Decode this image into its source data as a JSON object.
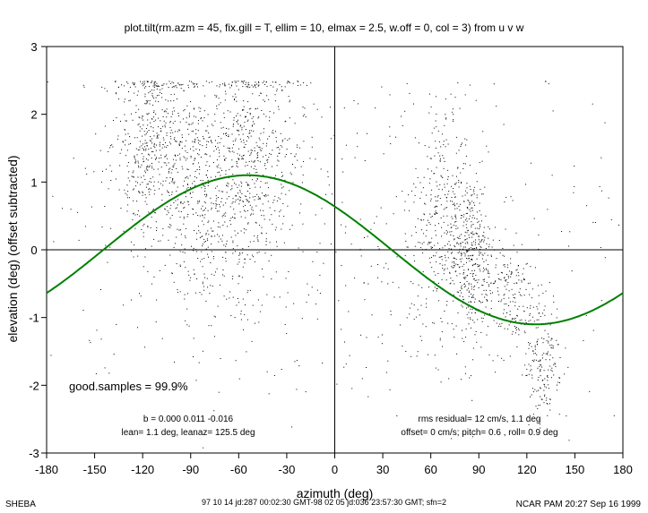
{
  "chart_data": {
    "type": "scatter",
    "title": "plot.tilt(rm.azm = 45, fix.gill = T, ellim = 10, elmax = 2.5, w.off = 0, col =  3) from u v w",
    "xlabel": "azimuth (deg)",
    "ylabel": "elevation (deg)  (offset subtracted)",
    "xlim": [
      -180,
      180
    ],
    "ylim": [
      -3,
      3
    ],
    "xticks": [
      "-180",
      "-150",
      "-120",
      "-90",
      "-60",
      "-30",
      "0",
      "30",
      "60",
      "90",
      "120",
      "150",
      "180"
    ],
    "yticks": [
      "-3",
      "-2",
      "-1",
      "0",
      "1",
      "2",
      "3"
    ],
    "reference_lines": {
      "x": 0,
      "y": 0
    },
    "scatter_clusters": [
      {
        "x_center": -115,
        "x_spread": 12,
        "y_center": 1.6,
        "y_spread": 0.7,
        "count": 520
      },
      {
        "x_center": -85,
        "x_spread": 10,
        "y_center": 0.9,
        "y_spread": 0.9,
        "count": 380
      },
      {
        "x_center": -58,
        "x_spread": 9,
        "y_center": 1.2,
        "y_spread": 0.9,
        "count": 420
      },
      {
        "x_center": -35,
        "x_spread": 10,
        "y_center": 1.5,
        "y_spread": 0.8,
        "count": 160
      },
      {
        "x_center": 68,
        "x_spread": 10,
        "y_center": 0.4,
        "y_spread": 0.9,
        "count": 360
      },
      {
        "x_center": 85,
        "x_spread": 6,
        "y_center": -0.1,
        "y_spread": 0.6,
        "count": 320
      },
      {
        "x_center": 108,
        "x_spread": 8,
        "y_center": -0.7,
        "y_spread": 0.4,
        "count": 160
      },
      {
        "x_center": 130,
        "x_spread": 6,
        "y_center": -1.6,
        "y_spread": 0.5,
        "count": 180
      },
      {
        "x_center": 0,
        "x_spread": 100,
        "y_center": 0.2,
        "y_spread": 1.3,
        "count": 500
      }
    ],
    "fit_curve": {
      "type": "sine",
      "formula": "elevation = amplitude * cos(azimuth - lean_azimuth)",
      "amplitude": 1.1,
      "lean_azimuth": -54.5,
      "color": "#008000"
    },
    "dot_color": "#000000"
  },
  "annotations": {
    "good_samples": "good.samples = 99.9%",
    "b_values": "b =  0.000  0.011 -0.016",
    "lean": "lean= 1.1 deg, leanaz= 125.5 deg",
    "rms": "rms residual= 12 cm/s, 1.1 deg",
    "offset": "offset= 0 cm/s; pitch= 0.6 , roll= 0.9 deg"
  },
  "footer": {
    "left": "SHEBA",
    "center": "97 10 14 jd:287 00:02:30 GMT-98 02 05 jd:036 23:57:30 GMT; sfn=2",
    "right": "NCAR PAM 20:27 Sep 16 1999"
  }
}
